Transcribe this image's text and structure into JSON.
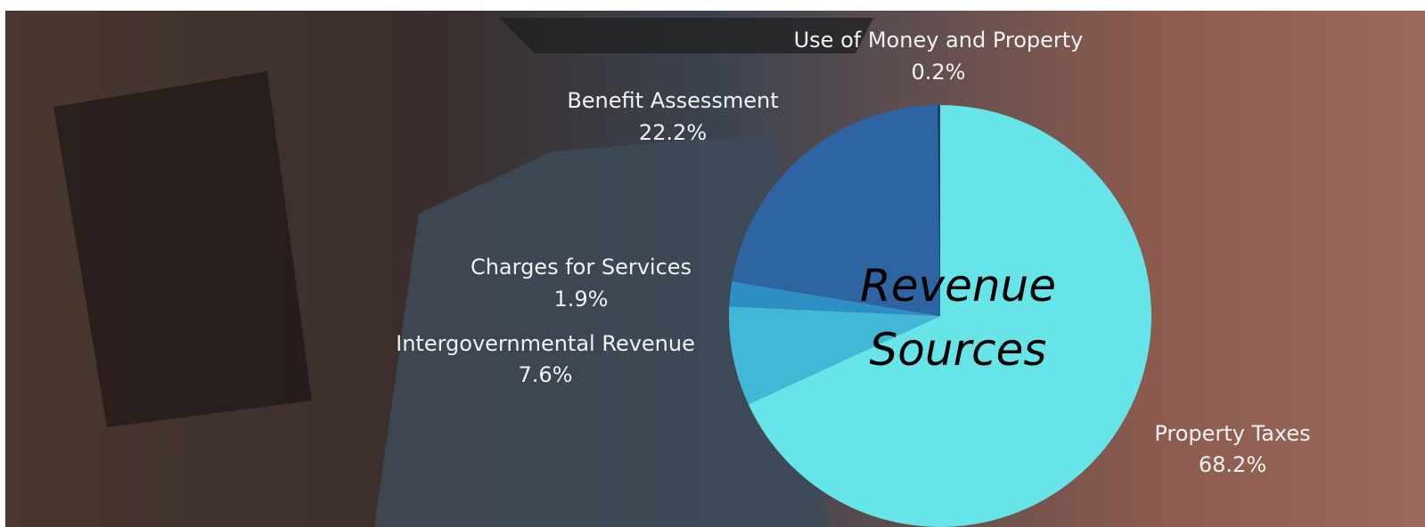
{
  "chart_data": {
    "type": "pie",
    "title": "Revenue Sources",
    "categories": [
      "Property Taxes",
      "Intergovernmental Revenue",
      "Charges for Services",
      "Benefit Assessment",
      "Use of Money and Property"
    ],
    "values": [
      68.2,
      7.6,
      1.9,
      22.2,
      0.2
    ],
    "value_labels": [
      "68.2%",
      "7.6%",
      "1.9%",
      "22.2%",
      "0.2%"
    ],
    "colors": [
      "#67e4e8",
      "#42b8d6",
      "#2e8fc4",
      "#2f64a3",
      "#1d3f6e"
    ]
  }
}
